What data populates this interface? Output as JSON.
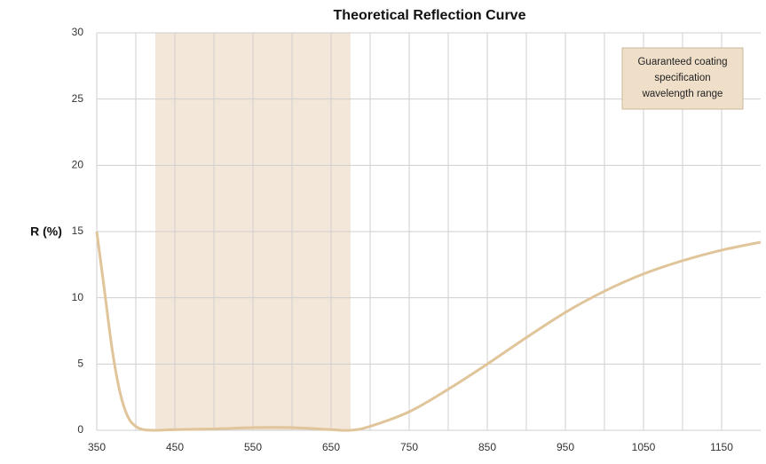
{
  "chart_data": {
    "type": "line",
    "title": "Theoretical Reflection Curve",
    "y_label": "R (%)",
    "x": [
      350,
      360,
      370,
      380,
      390,
      400,
      410,
      425,
      450,
      500,
      550,
      600,
      650,
      675,
      700,
      750,
      800,
      850,
      900,
      950,
      1000,
      1050,
      1100,
      1150,
      1200
    ],
    "series": [
      {
        "name": "R (%)",
        "color": "#e0c49a",
        "values": [
          15,
          10.5,
          6,
          2.8,
          1,
          0.3,
          0.05,
          0,
          0.05,
          0.1,
          0.2,
          0.2,
          0.05,
          0,
          0.3,
          1.4,
          3.1,
          5,
          7,
          8.9,
          10.5,
          11.8,
          12.8,
          13.6,
          14.2
        ]
      }
    ],
    "xlim": [
      350,
      1200
    ],
    "xticks": [
      350,
      450,
      550,
      650,
      750,
      850,
      950,
      1050,
      1150
    ],
    "xgrid_minor": [
      400,
      500,
      600,
      700,
      800,
      900,
      1000,
      1100
    ],
    "ylim": [
      0,
      30
    ],
    "yticks": [
      0,
      5,
      10,
      15,
      20,
      25,
      30
    ],
    "grid": true,
    "highlight": {
      "range": [
        425,
        675
      ],
      "color": "#f3e7d9",
      "label_lines": [
        "Guaranteed coating",
        "specification",
        "wavelength range"
      ],
      "label_color": "#efdfc9"
    }
  }
}
